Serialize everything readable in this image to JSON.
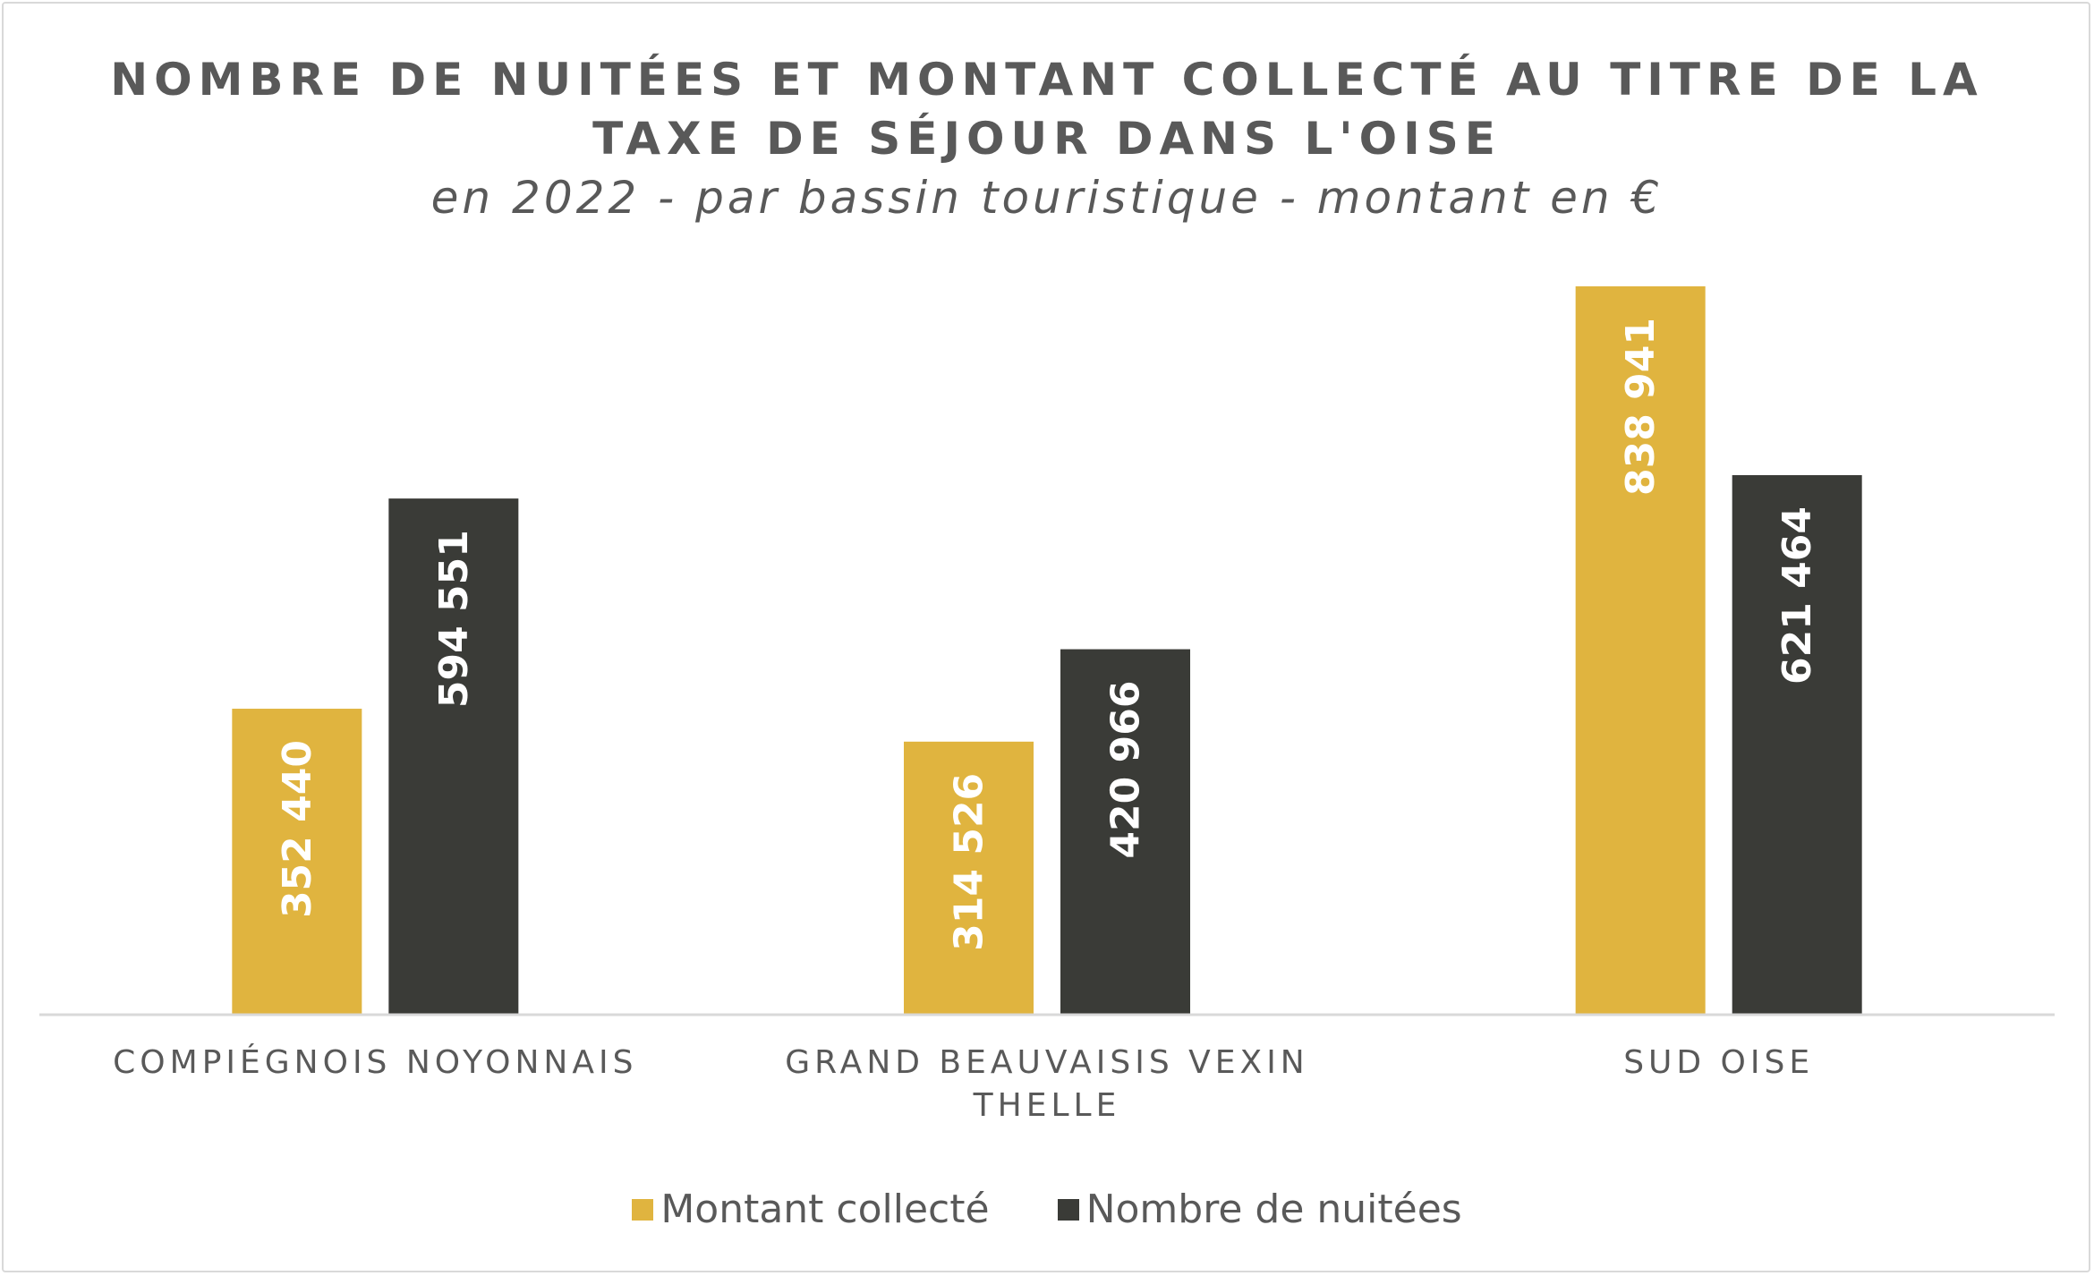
{
  "chart_data": {
    "type": "bar",
    "title": "NOMBRE DE NUITÉES ET MONTANT COLLECTÉ AU TITRE DE LA TAXE DE SÉJOUR DANS L'OISE",
    "title_lines": [
      "NOMBRE DE NUITÉES ET MONTANT COLLECTÉ AU TITRE DE LA",
      "TAXE DE SÉJOUR DANS L'OISE"
    ],
    "subtitle": "en 2022 - par bassin touristique - montant en €",
    "categories": [
      "COMPIÉGNOIS NOYONNAIS",
      "GRAND BEAUVAISIS VEXIN THELLE",
      "SUD OISE"
    ],
    "category_lines": [
      [
        "COMPIÉGNOIS NOYONNAIS"
      ],
      [
        "GRAND BEAUVAISIS VEXIN",
        "THELLE"
      ],
      [
        "SUD OISE"
      ]
    ],
    "series": [
      {
        "name": "Montant collecté",
        "color": "#e0b43f",
        "values": [
          352440,
          314526,
          838941
        ],
        "labels": [
          "352 440",
          "314 526",
          "838 941"
        ]
      },
      {
        "name": "Nombre de nuitées",
        "color": "#3a3b37",
        "values": [
          594551,
          420966,
          621464
        ],
        "labels": [
          "594 551",
          "420 966",
          "621 464"
        ]
      }
    ],
    "xlabel": "",
    "ylabel": "",
    "ylim": [
      0,
      838941
    ],
    "y_axis_visible": false,
    "grid": false,
    "legend_position": "bottom",
    "data_labels": "inside, rotated vertical, white bold"
  }
}
